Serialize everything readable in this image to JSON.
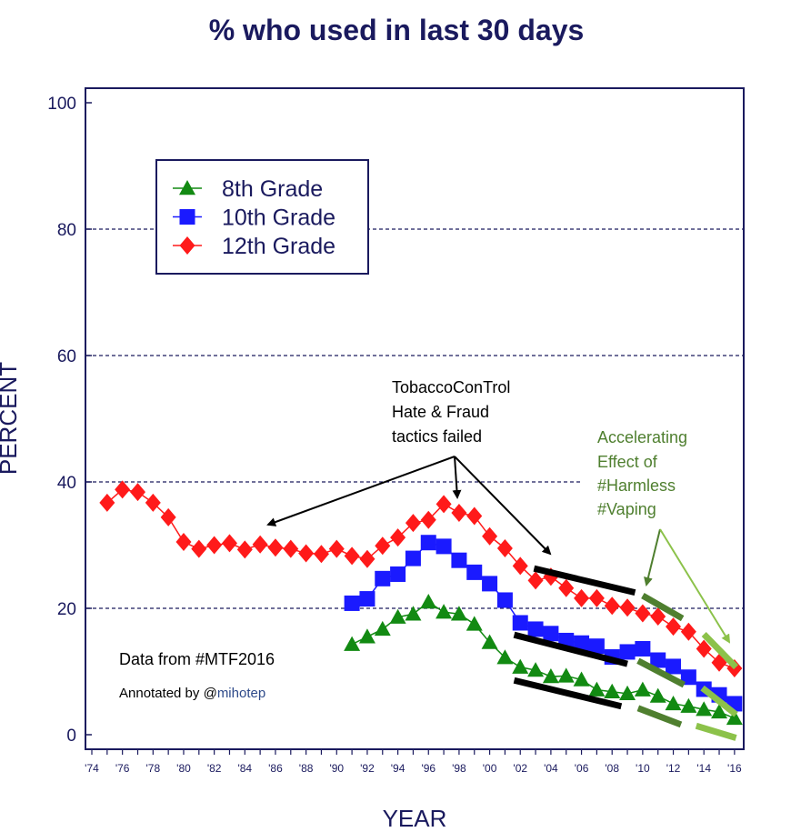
{
  "chart_data": {
    "type": "line",
    "title": "% who used in last 30 days",
    "xlabel": "YEAR",
    "ylabel": "PERCENT",
    "ylim": [
      0,
      100
    ],
    "xlim": [
      1974,
      2016
    ],
    "yticks": [
      "0",
      "20",
      "40",
      "60",
      "80",
      "100"
    ],
    "xticks": [
      "'74",
      "'76",
      "'78",
      "'80",
      "'82",
      "'84",
      "'86",
      "'88",
      "'90",
      "'92",
      "'94",
      "'96",
      "'98",
      "'00",
      "'02",
      "'04",
      "'06",
      "'08",
      "'10",
      "'12",
      "'14",
      "'16"
    ],
    "legend_position": "top-left",
    "series": [
      {
        "name": "8th Grade",
        "color": "#128a12",
        "marker": "triangle",
        "x": [
          1991,
          1992,
          1993,
          1994,
          1995,
          1996,
          1997,
          1998,
          1999,
          2000,
          2001,
          2002,
          2003,
          2004,
          2005,
          2006,
          2007,
          2008,
          2009,
          2010,
          2011,
          2012,
          2013,
          2014,
          2015,
          2016
        ],
        "values": [
          14.3,
          15.5,
          16.7,
          18.6,
          19.1,
          21.0,
          19.4,
          19.1,
          17.5,
          14.6,
          12.2,
          10.7,
          10.2,
          9.2,
          9.3,
          8.7,
          7.1,
          6.8,
          6.5,
          7.1,
          6.1,
          4.9,
          4.5,
          4.0,
          3.6,
          2.6
        ]
      },
      {
        "name": "10th Grade",
        "color": "#1a1aff",
        "marker": "square",
        "x": [
          1991,
          1992,
          1993,
          1994,
          1995,
          1996,
          1997,
          1998,
          1999,
          2000,
          2001,
          2002,
          2003,
          2004,
          2005,
          2006,
          2007,
          2008,
          2009,
          2010,
          2011,
          2012,
          2013,
          2014,
          2015,
          2016
        ],
        "values": [
          20.8,
          21.5,
          24.7,
          25.4,
          27.9,
          30.4,
          29.8,
          27.6,
          25.7,
          23.9,
          21.3,
          17.7,
          16.7,
          16.0,
          14.9,
          14.5,
          14.0,
          12.3,
          13.1,
          13.6,
          11.8,
          10.8,
          9.1,
          7.2,
          6.3,
          4.9
        ]
      },
      {
        "name": "12th Grade",
        "color": "#ff1a1a",
        "marker": "diamond",
        "x": [
          1975,
          1976,
          1977,
          1978,
          1979,
          1980,
          1981,
          1982,
          1983,
          1984,
          1985,
          1986,
          1987,
          1988,
          1989,
          1990,
          1991,
          1992,
          1993,
          1994,
          1995,
          1996,
          1997,
          1998,
          1999,
          2000,
          2001,
          2002,
          2003,
          2004,
          2005,
          2006,
          2007,
          2008,
          2009,
          2010,
          2011,
          2012,
          2013,
          2014,
          2015,
          2016
        ],
        "values": [
          36.7,
          38.8,
          38.4,
          36.7,
          34.4,
          30.5,
          29.4,
          30.0,
          30.3,
          29.3,
          30.1,
          29.6,
          29.4,
          28.7,
          28.6,
          29.4,
          28.3,
          27.8,
          29.9,
          31.2,
          33.5,
          34.0,
          36.5,
          35.1,
          34.6,
          31.4,
          29.5,
          26.7,
          24.4,
          25.0,
          23.2,
          21.6,
          21.6,
          20.4,
          20.1,
          19.2,
          18.7,
          17.1,
          16.3,
          13.6,
          11.4,
          10.5
        ]
      }
    ],
    "annotations": {
      "tc_lines": [
        "TobaccoConTrol",
        "Hate & Fraud",
        "tactics failed"
      ],
      "vaping_lines": [
        "Accelerating",
        "Effect of",
        "#Harmless",
        "#Vaping"
      ],
      "data_source": "Data from #MTF2016",
      "annotated_prefix": "Annotated by @",
      "annotated_handle": "mihotep"
    },
    "trend_segments": {
      "black": [
        {
          "x": [
            2002.9,
            2009.5
          ],
          "y": [
            26.3,
            22.5
          ]
        },
        {
          "x": [
            2001.6,
            2009.0
          ],
          "y": [
            15.8,
            11.2
          ]
        },
        {
          "x": [
            2001.6,
            2008.6
          ],
          "y": [
            8.6,
            4.5
          ]
        }
      ],
      "dark_green": [
        {
          "x": [
            2010.0,
            2012.6
          ],
          "y": [
            22.0,
            18.4
          ]
        },
        {
          "x": [
            2009.7,
            2012.7
          ],
          "y": [
            11.7,
            7.9
          ]
        },
        {
          "x": [
            2009.7,
            2012.5
          ],
          "y": [
            4.2,
            1.6
          ]
        }
      ],
      "light_green": [
        {
          "x": [
            2014.0,
            2016.1
          ],
          "y": [
            15.9,
            10.7
          ]
        },
        {
          "x": [
            2013.9,
            2016.1
          ],
          "y": [
            7.4,
            3.2
          ]
        },
        {
          "x": [
            2013.5,
            2016.1
          ],
          "y": [
            1.4,
            -0.5
          ]
        }
      ]
    },
    "colors": {
      "axis": "#1a1a5e",
      "grid": "#1a1a5e",
      "black_trend": "#000000",
      "dark_green": "#4f7f2f",
      "light_green": "#8cc24a",
      "handle": "#2e4a8a"
    }
  }
}
